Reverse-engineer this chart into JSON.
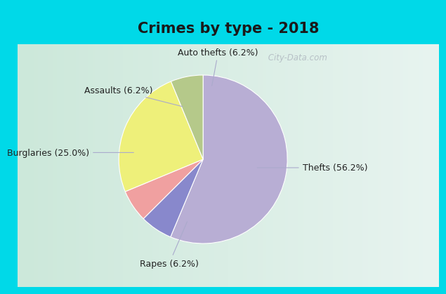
{
  "title": "Crimes by type - 2018",
  "slices": [
    {
      "label": "Thefts (56.2%)",
      "value": 56.2,
      "color": "#b8aed4"
    },
    {
      "label": "Auto thefts (6.2%)",
      "value": 6.2,
      "color": "#8888cc"
    },
    {
      "label": "Assaults (6.2%)",
      "value": 6.2,
      "color": "#f0a0a0"
    },
    {
      "label": "Burglaries (25.0%)",
      "value": 25.0,
      "color": "#eef07a"
    },
    {
      "label": "Rapes (6.2%)",
      "value": 6.2,
      "color": "#b5c98a"
    }
  ],
  "startangle": 90,
  "background_top": "#00d9e8",
  "background_main_left": "#c5e8d8",
  "background_main_right": "#e8f0ee",
  "title_fontsize": 15,
  "label_fontsize": 9,
  "watermark": " City-Data.com"
}
